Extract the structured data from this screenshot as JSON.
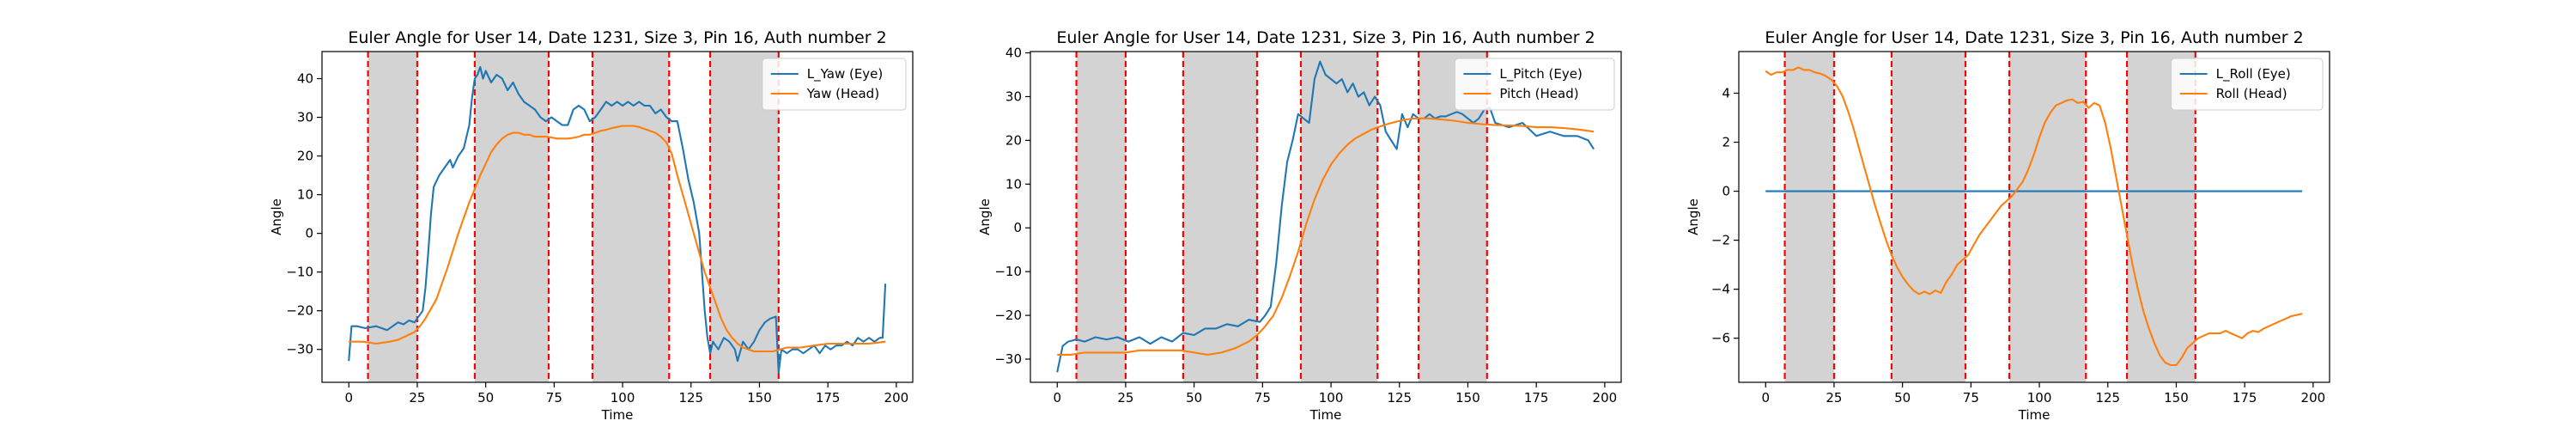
{
  "chart_data": [
    {
      "type": "line",
      "title": "Euler Angle for User 14, Date 1231, Size 3, Pin 16, Auth number 2",
      "xlabel": "Time",
      "ylabel": "Angle",
      "xlim": [
        -9.8,
        206
      ],
      "ylim": [
        -38.5,
        47
      ],
      "xticks": [
        0,
        25,
        50,
        75,
        100,
        125,
        150,
        175,
        200
      ],
      "yticks": [
        -30,
        -20,
        -10,
        0,
        10,
        20,
        30,
        40
      ],
      "shaded_intervals": [
        [
          7,
          25
        ],
        [
          46,
          73
        ],
        [
          89,
          117
        ],
        [
          132,
          157
        ]
      ],
      "legend_position": "upper right",
      "series": [
        {
          "name": "L_Yaw (Eye)",
          "color": "#1f77b4",
          "x": [
            0,
            1,
            3,
            6,
            10,
            14,
            18,
            20,
            22,
            24,
            25,
            26,
            27,
            28,
            29,
            30,
            31,
            33,
            35,
            37,
            38,
            40,
            42,
            44,
            45,
            46,
            47,
            48,
            49,
            50,
            52,
            54,
            56,
            58,
            60,
            62,
            64,
            66,
            68,
            70,
            72,
            74,
            76,
            78,
            80,
            82,
            84,
            86,
            88,
            90,
            92,
            94,
            96,
            98,
            100,
            102,
            104,
            106,
            108,
            110,
            112,
            114,
            116,
            118,
            120,
            122,
            124,
            126,
            128,
            129,
            130,
            131,
            132,
            133,
            135,
            137,
            139,
            141,
            142,
            144,
            146,
            148,
            150,
            152,
            154,
            156,
            157,
            158,
            160,
            162,
            164,
            166,
            168,
            170,
            172,
            174,
            176,
            178,
            180,
            182,
            184,
            186,
            188,
            190,
            192,
            194,
            195,
            196
          ],
          "y": [
            -33,
            -24,
            -24,
            -24.5,
            -24,
            -25,
            -23,
            -23.5,
            -22.5,
            -23,
            -22,
            -21,
            -20,
            -14,
            -5,
            5,
            12,
            15,
            17,
            19,
            17,
            20,
            22,
            28,
            35,
            40,
            41,
            43,
            40,
            42,
            39,
            41,
            40,
            37,
            39,
            36,
            34,
            33,
            32,
            30,
            29,
            30,
            29,
            28,
            28,
            32,
            33,
            32,
            29,
            30,
            32,
            34,
            33,
            34,
            33,
            34,
            33,
            34,
            33,
            33,
            31,
            32,
            30,
            29,
            29,
            22,
            14,
            8,
            0,
            -10,
            -20,
            -27,
            -31,
            -28,
            -30,
            -27,
            -28,
            -30,
            -33,
            -28,
            -30,
            -28,
            -25,
            -23,
            -22,
            -21.5,
            -36,
            -30,
            -31,
            -30,
            -30,
            -31,
            -30,
            -29,
            -31,
            -29,
            -30,
            -29,
            -29,
            -28,
            -29,
            -27,
            -28,
            -27,
            -28,
            -27,
            -27,
            -13
          ]
        },
        {
          "name": "Yaw (Head)",
          "color": "#ff7f0e",
          "x": [
            0,
            5,
            10,
            15,
            18,
            21,
            24,
            26,
            28,
            30,
            32,
            34,
            36,
            38,
            40,
            42,
            44,
            46,
            48,
            50,
            52,
            54,
            56,
            58,
            60,
            62,
            64,
            66,
            68,
            70,
            72,
            74,
            76,
            78,
            80,
            82,
            84,
            86,
            88,
            90,
            92,
            94,
            96,
            98,
            100,
            102,
            104,
            106,
            108,
            110,
            112,
            114,
            116,
            118,
            120,
            122,
            124,
            126,
            128,
            130,
            132,
            134,
            136,
            138,
            140,
            142,
            144,
            146,
            148,
            150,
            155,
            160,
            165,
            170,
            175,
            180,
            185,
            190,
            196
          ],
          "y": [
            -28,
            -28,
            -28.5,
            -28,
            -27.5,
            -26.5,
            -25.5,
            -24,
            -22,
            -19.5,
            -17,
            -13,
            -9,
            -4.5,
            0,
            4,
            8,
            11.5,
            15,
            18,
            21,
            23,
            24.5,
            25.5,
            26,
            26,
            25.5,
            25.5,
            25,
            25,
            25,
            24.8,
            24.5,
            24.5,
            24.5,
            24.7,
            25,
            25.5,
            25.5,
            26,
            26.5,
            26.8,
            27.2,
            27.5,
            27.8,
            27.8,
            27.8,
            27.5,
            27,
            26.5,
            26,
            25,
            23.5,
            20.5,
            15,
            10,
            5,
            0,
            -5,
            -10,
            -14,
            -18,
            -22,
            -25,
            -27,
            -28.5,
            -29.5,
            -30,
            -30.5,
            -30.5,
            -30.5,
            -29.5,
            -29.5,
            -29,
            -28.5,
            -28.5,
            -28.5,
            -28.5,
            -28
          ]
        }
      ]
    },
    {
      "type": "line",
      "title": "Euler Angle for User 14, Date 1231, Size 3, Pin 16, Auth number 2",
      "xlabel": "Time",
      "ylabel": "Angle",
      "xlim": [
        -9.8,
        206
      ],
      "ylim": [
        -35.3,
        40.3
      ],
      "xticks": [
        0,
        25,
        50,
        75,
        100,
        125,
        150,
        175,
        200
      ],
      "yticks": [
        -30,
        -20,
        -10,
        0,
        10,
        20,
        30,
        40
      ],
      "shaded_intervals": [
        [
          7,
          25
        ],
        [
          46,
          73
        ],
        [
          89,
          117
        ],
        [
          132,
          157
        ]
      ],
      "legend_position": "upper right",
      "series": [
        {
          "name": "L_Pitch (Eye)",
          "color": "#1f77b4",
          "x": [
            0,
            2,
            4,
            7,
            10,
            14,
            18,
            22,
            26,
            30,
            34,
            38,
            42,
            46,
            50,
            54,
            58,
            62,
            66,
            70,
            74,
            76,
            78,
            80,
            82,
            84,
            86,
            88,
            90,
            92,
            94,
            96,
            98,
            100,
            102,
            104,
            106,
            108,
            110,
            112,
            114,
            116,
            118,
            120,
            122,
            124,
            126,
            128,
            130,
            132,
            134,
            136,
            138,
            140,
            142,
            144,
            146,
            148,
            150,
            152,
            154,
            156,
            158,
            160,
            165,
            170,
            175,
            180,
            185,
            190,
            194,
            196
          ],
          "y": [
            -33,
            -27,
            -26,
            -25.5,
            -26,
            -25,
            -25.5,
            -25,
            -26,
            -25,
            -26.5,
            -25,
            -26,
            -24,
            -24.5,
            -23,
            -23,
            -22,
            -22.5,
            -21,
            -21.5,
            -20,
            -18,
            -8,
            5,
            15,
            20,
            26,
            25,
            24,
            34,
            38,
            35,
            34,
            33,
            34,
            31,
            33,
            30,
            31,
            28,
            30,
            28,
            22,
            20,
            18,
            26,
            23,
            26,
            25,
            25,
            26,
            25,
            25.5,
            25.5,
            26,
            26.5,
            26,
            25,
            24,
            25,
            27,
            27.5,
            24,
            23,
            24,
            21,
            22,
            21,
            21,
            20,
            18
          ]
        },
        {
          "name": "Pitch (Head)",
          "color": "#ff7f0e",
          "x": [
            0,
            5,
            10,
            15,
            20,
            25,
            30,
            35,
            40,
            45,
            50,
            55,
            60,
            65,
            70,
            73,
            76,
            79,
            82,
            85,
            88,
            91,
            94,
            97,
            100,
            103,
            106,
            109,
            112,
            115,
            118,
            121,
            124,
            127,
            130,
            133,
            136,
            140,
            145,
            150,
            155,
            160,
            165,
            170,
            175,
            180,
            185,
            190,
            196
          ],
          "y": [
            -29,
            -29,
            -28.5,
            -28.5,
            -28.5,
            -28.5,
            -28,
            -28,
            -28,
            -28,
            -28.5,
            -29,
            -28.5,
            -27.5,
            -26,
            -24.5,
            -22.5,
            -20,
            -16,
            -11,
            -5.5,
            1,
            6.5,
            11,
            14.5,
            17,
            19,
            20.5,
            21.5,
            22.5,
            23.2,
            23.8,
            24.3,
            24.7,
            25,
            25,
            25,
            24.8,
            24.5,
            24,
            23.7,
            23.5,
            23.4,
            23.3,
            23,
            23,
            22.8,
            22.5,
            22
          ]
        }
      ]
    },
    {
      "type": "line",
      "title": "Euler Angle for User 14, Date 1231, Size 3, Pin 16, Auth number 2",
      "xlabel": "Time",
      "ylabel": "Angle",
      "xlim": [
        -9.8,
        206
      ],
      "ylim": [
        -7.8,
        5.7
      ],
      "xticks": [
        0,
        25,
        50,
        75,
        100,
        125,
        150,
        175,
        200
      ],
      "yticks": [
        -6,
        -4,
        -2,
        0,
        2,
        4
      ],
      "shaded_intervals": [
        [
          7,
          25
        ],
        [
          46,
          73
        ],
        [
          89,
          117
        ],
        [
          132,
          157
        ]
      ],
      "legend_position": "upper right",
      "series": [
        {
          "name": "L_Roll (Eye)",
          "color": "#1f77b4",
          "x": [
            0,
            196
          ],
          "y": [
            0,
            0
          ]
        },
        {
          "name": "Roll (Head)",
          "color": "#ff7f0e",
          "x": [
            0,
            2,
            4,
            6,
            8,
            10,
            12,
            14,
            16,
            18,
            20,
            22,
            24,
            26,
            28,
            30,
            32,
            34,
            36,
            38,
            40,
            42,
            44,
            46,
            48,
            50,
            52,
            54,
            56,
            58,
            60,
            62,
            64,
            66,
            68,
            70,
            72,
            74,
            76,
            78,
            80,
            82,
            84,
            86,
            88,
            90,
            92,
            94,
            96,
            98,
            100,
            102,
            104,
            106,
            108,
            110,
            112,
            114,
            116,
            118,
            120,
            122,
            124,
            126,
            128,
            130,
            132,
            134,
            136,
            138,
            140,
            142,
            144,
            146,
            148,
            150,
            152,
            154,
            156,
            158,
            160,
            162,
            164,
            166,
            168,
            170,
            172,
            174,
            176,
            178,
            180,
            182,
            184,
            186,
            188,
            190,
            192,
            194,
            196
          ],
          "y": [
            4.9,
            4.75,
            4.85,
            4.85,
            4.95,
            4.95,
            5.05,
            4.95,
            4.95,
            4.85,
            4.8,
            4.7,
            4.55,
            4.3,
            3.9,
            3.3,
            2.6,
            1.8,
            1.0,
            0.2,
            -0.6,
            -1.3,
            -2.0,
            -2.6,
            -3.1,
            -3.5,
            -3.8,
            -4.05,
            -4.2,
            -4.1,
            -4.2,
            -4.05,
            -4.15,
            -3.7,
            -3.4,
            -3.0,
            -2.8,
            -2.6,
            -2.2,
            -1.8,
            -1.5,
            -1.2,
            -0.9,
            -0.6,
            -0.4,
            -0.2,
            0.1,
            0.4,
            0.9,
            1.5,
            2.2,
            2.8,
            3.2,
            3.5,
            3.6,
            3.7,
            3.75,
            3.6,
            3.65,
            3.4,
            3.6,
            3.5,
            2.8,
            1.8,
            0.6,
            -0.6,
            -1.8,
            -3.0,
            -4.0,
            -4.9,
            -5.6,
            -6.2,
            -6.7,
            -7.0,
            -7.1,
            -7.1,
            -6.8,
            -6.4,
            -6.2,
            -6.0,
            -5.9,
            -5.8,
            -5.8,
            -5.8,
            -5.7,
            -5.8,
            -5.9,
            -6.0,
            -5.8,
            -5.7,
            -5.75,
            -5.6,
            -5.5,
            -5.4,
            -5.3,
            -5.2,
            -5.1,
            -5.05,
            -5.0
          ]
        }
      ]
    }
  ]
}
